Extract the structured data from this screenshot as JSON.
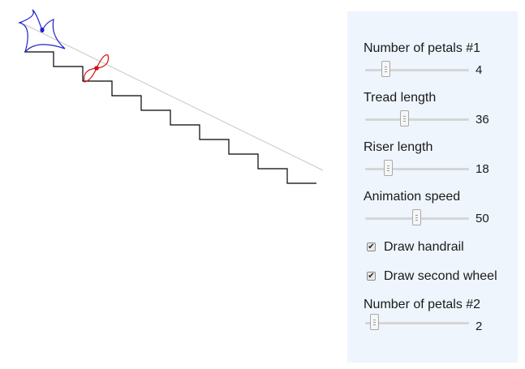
{
  "controls": {
    "petals1": {
      "label": "Number of petals #1",
      "value": "4",
      "level": 0.2
    },
    "tread": {
      "label": "Tread length",
      "value": "36",
      "level": 0.38
    },
    "riser": {
      "label": "Riser length",
      "value": "18",
      "level": 0.23
    },
    "speed": {
      "label": "Animation speed",
      "value": "50",
      "level": 0.5
    },
    "handrail": {
      "label": "Draw handrail",
      "checked": true,
      "mark": "✔"
    },
    "second_wheel": {
      "label": "Draw second wheel",
      "checked": true,
      "mark": "✔"
    },
    "petals2": {
      "label": "Number of petals #2",
      "value": "2",
      "level": 0.09
    }
  },
  "colors": {
    "panel_bg": "#eef5fd",
    "wheel1": "#1f22c8",
    "wheel2": "#d21212",
    "stairs": "#000000",
    "handrail": "#c8c8c8"
  }
}
